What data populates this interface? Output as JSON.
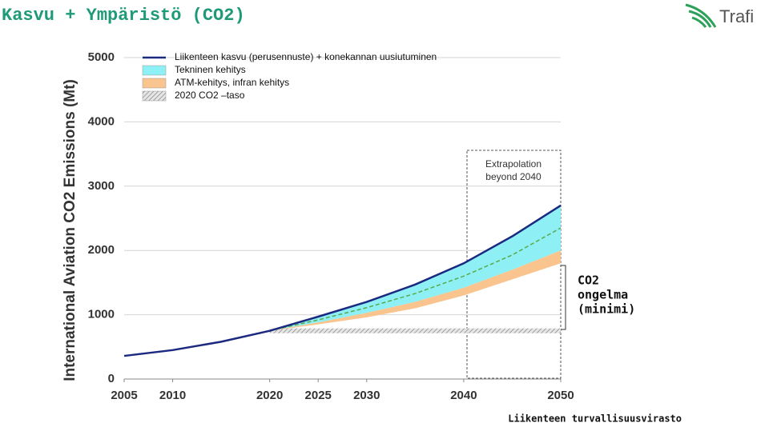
{
  "title": "Kasvu + Ympäristö (CO2)",
  "logo": "Trafi",
  "footer": "Liikenteen turvallisuusvirasto",
  "chart_data": {
    "type": "area",
    "y_label": "International Aviation CO2 Emissions (Mt)",
    "x": [
      2005,
      2010,
      2015,
      2020,
      2025,
      2030,
      2035,
      2040,
      2045,
      2050
    ],
    "xlim": [
      2005,
      2050
    ],
    "xticks": [
      2005,
      2010,
      2020,
      2025,
      2030,
      2040,
      2050
    ],
    "ylim": [
      0,
      5000
    ],
    "yticks": [
      0,
      1000,
      2000,
      3000,
      4000,
      5000
    ],
    "grid": true,
    "legend": "top-left",
    "series": [
      {
        "name": "Liikenteen kasvu (perusennuste) + konekannan uusiutuminen",
        "color": "#1b2a80",
        "kind": "line",
        "values": [
          360,
          450,
          580,
          750,
          970,
          1200,
          1470,
          1800,
          2220,
          2700
        ]
      },
      {
        "name": "Tekninen kehitys",
        "color": "#8ef0f4",
        "kind": "band",
        "values": [
          null,
          null,
          null,
          750,
          880,
          1030,
          1200,
          1420,
          1700,
          2000
        ],
        "midline": [
          null,
          null,
          null,
          750,
          920,
          1110,
          1330,
          1600,
          1930,
          2350
        ],
        "midline_color": "#5aa84a"
      },
      {
        "name": "ATM-kehitys, infran kehitys",
        "color": "#f9c48e",
        "kind": "band",
        "values": [
          null,
          null,
          null,
          750,
          850,
          960,
          1100,
          1300,
          1550,
          1800
        ]
      },
      {
        "name": "2020 CO2 –taso",
        "color": "#aaaaaa",
        "kind": "hatch",
        "values": [
          null,
          null,
          null,
          750,
          750,
          750,
          750,
          750,
          750,
          750
        ]
      }
    ],
    "annotations": {
      "extrapolation": [
        "Extrapolation",
        "beyond 2040"
      ],
      "bracket": [
        "CO2",
        "ongelma",
        "(minimi)"
      ]
    }
  }
}
